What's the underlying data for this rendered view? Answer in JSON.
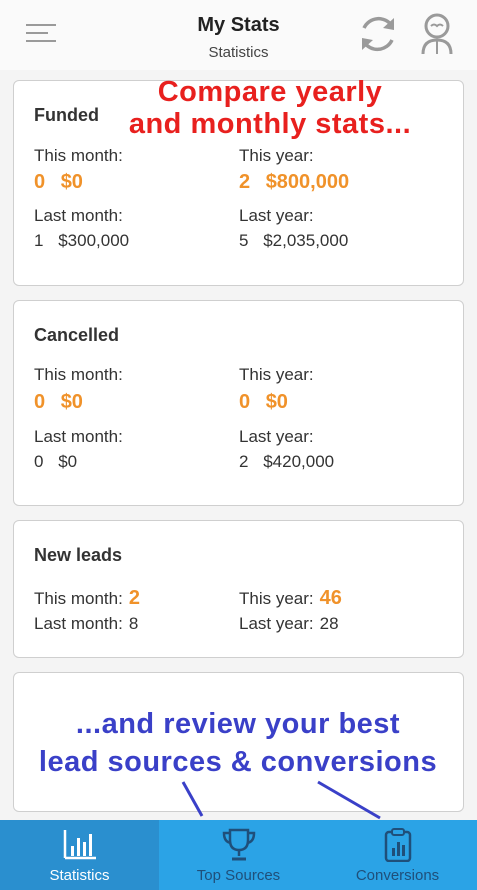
{
  "header": {
    "title": "My Stats",
    "subtitle": "Statistics",
    "icons": {
      "menu": "hamburger-menu-icon",
      "refresh": "refresh-icon",
      "avatar": "profile-icon"
    }
  },
  "promo_top": {
    "line1": "Compare yearly",
    "line2": "and monthly stats..."
  },
  "funded": {
    "title": "Funded",
    "this_month_label": "This month:",
    "this_month_count": "0",
    "this_month_amount": "$0",
    "this_year_label": "This year:",
    "this_year_count": "2",
    "this_year_amount": "$800,000",
    "last_month_label": "Last month:",
    "last_month_count": "1",
    "last_month_amount": "$300,000",
    "last_year_label": "Last year:",
    "last_year_count": "5",
    "last_year_amount": "$2,035,000"
  },
  "cancelled": {
    "title": "Cancelled",
    "this_month_label": "This month:",
    "this_month_count": "0",
    "this_month_amount": "$0",
    "this_year_label": "This year:",
    "this_year_count": "0",
    "this_year_amount": "$0",
    "last_month_label": "Last month:",
    "last_month_count": "0",
    "last_month_amount": "$0",
    "last_year_label": "Last year:",
    "last_year_count": "2",
    "last_year_amount": "$420,000"
  },
  "new_leads": {
    "title": "New leads",
    "this_month_label": "This month:",
    "this_month_value": "2",
    "this_year_label": "This year:",
    "this_year_value": "46",
    "last_month_label": "Last month:",
    "last_month_value": "8",
    "last_year_label": "Last year:",
    "last_year_value": "28"
  },
  "promo_bottom": {
    "line1": "...and review your best",
    "line2": "lead sources & conversions"
  },
  "tabs": [
    {
      "label": "Statistics",
      "icon": "bar-chart-icon",
      "active": true
    },
    {
      "label": "Top Sources",
      "icon": "trophy-icon",
      "active": false
    },
    {
      "label": "Conversions",
      "icon": "clipboard-chart-icon",
      "active": false
    }
  ],
  "colors": {
    "accent_orange": "#f0922a",
    "tabbar": "#2ba3e6",
    "tab_active": "#2a8fcf",
    "promo_red": "#e8201e",
    "promo_blue": "#3a40c8"
  }
}
